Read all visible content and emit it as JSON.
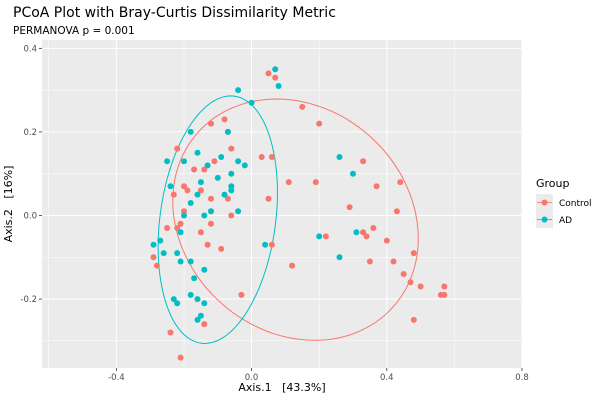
{
  "chart_data": {
    "type": "scatter",
    "title": "PCoA Plot with Bray-Curtis Dissimilarity Metric",
    "subtitle": "PERMANOVA p = 0.001",
    "xlabel": "Axis.1   [43.3%]",
    "ylabel": "Axis.2   [16%]",
    "xlim": [
      -0.62,
      0.8
    ],
    "ylim": [
      -0.365,
      0.42
    ],
    "x_ticks": [
      -0.4,
      0.0,
      0.4,
      0.8
    ],
    "x_tick_labels": [
      "-0.4",
      "0.0",
      "0.4",
      "0.8"
    ],
    "y_ticks": [
      -0.2,
      0.0,
      0.2,
      0.4
    ],
    "y_tick_labels": [
      "-0.2",
      "0.0",
      "0.2",
      "0.4"
    ],
    "grid": true,
    "legend": {
      "title": "Group",
      "position": "right"
    },
    "series": [
      {
        "name": "Control",
        "color": "#F8766D",
        "points": [
          [
            0.05,
            0.34
          ],
          [
            0.07,
            0.33
          ],
          [
            0.2,
            0.22
          ],
          [
            0.15,
            0.26
          ],
          [
            -0.08,
            0.23
          ],
          [
            -0.12,
            0.22
          ],
          [
            -0.07,
            0.2
          ],
          [
            -0.06,
            0.16
          ],
          [
            0.06,
            0.14
          ],
          [
            -0.11,
            0.13
          ],
          [
            0.03,
            0.14
          ],
          [
            -0.22,
            0.16
          ],
          [
            -0.17,
            0.11
          ],
          [
            -0.14,
            0.11
          ],
          [
            -0.2,
            0.07
          ],
          [
            -0.19,
            0.06
          ],
          [
            -0.23,
            0.05
          ],
          [
            -0.15,
            0.06
          ],
          [
            -0.12,
            0.04
          ],
          [
            -0.07,
            0.04
          ],
          [
            -0.12,
            0.01
          ],
          [
            -0.06,
            0.0
          ],
          [
            -0.2,
            0.01
          ],
          [
            -0.21,
            -0.02
          ],
          [
            -0.12,
            -0.02
          ],
          [
            -0.22,
            -0.03
          ],
          [
            -0.25,
            -0.03
          ],
          [
            0.05,
            0.04
          ],
          [
            0.11,
            0.08
          ],
          [
            0.19,
            0.08
          ],
          [
            0.33,
            0.13
          ],
          [
            0.37,
            0.07
          ],
          [
            0.44,
            0.08
          ],
          [
            0.43,
            0.01
          ],
          [
            0.29,
            0.02
          ],
          [
            0.36,
            -0.03
          ],
          [
            0.4,
            -0.06
          ],
          [
            0.48,
            -0.09
          ],
          [
            0.33,
            -0.04
          ],
          [
            0.34,
            -0.05
          ],
          [
            0.22,
            -0.05
          ],
          [
            0.06,
            -0.07
          ],
          [
            0.12,
            -0.12
          ],
          [
            0.35,
            -0.11
          ],
          [
            0.42,
            -0.11
          ],
          [
            0.45,
            -0.14
          ],
          [
            0.5,
            -0.17
          ],
          [
            0.47,
            -0.16
          ],
          [
            0.57,
            -0.17
          ],
          [
            0.56,
            -0.19
          ],
          [
            0.57,
            -0.19
          ],
          [
            0.48,
            -0.25
          ],
          [
            -0.09,
            -0.08
          ],
          [
            -0.13,
            -0.07
          ],
          [
            -0.15,
            -0.04
          ],
          [
            -0.29,
            -0.1
          ],
          [
            -0.28,
            -0.12
          ],
          [
            -0.03,
            -0.19
          ],
          [
            -0.14,
            -0.26
          ],
          [
            -0.24,
            -0.28
          ],
          [
            -0.21,
            -0.34
          ]
        ]
      },
      {
        "name": "AD",
        "color": "#00BFC4",
        "points": [
          [
            -0.04,
            0.3
          ],
          [
            0.0,
            0.27
          ],
          [
            0.07,
            0.35
          ],
          [
            0.08,
            0.31
          ],
          [
            -0.07,
            0.2
          ],
          [
            -0.18,
            0.2
          ],
          [
            -0.25,
            0.13
          ],
          [
            -0.2,
            0.13
          ],
          [
            -0.16,
            0.15
          ],
          [
            -0.13,
            0.12
          ],
          [
            -0.09,
            0.14
          ],
          [
            -0.04,
            0.13
          ],
          [
            -0.02,
            0.12
          ],
          [
            -0.06,
            0.1
          ],
          [
            -0.1,
            0.09
          ],
          [
            -0.15,
            0.08
          ],
          [
            -0.24,
            0.07
          ],
          [
            -0.06,
            0.07
          ],
          [
            -0.08,
            0.05
          ],
          [
            -0.06,
            0.06
          ],
          [
            -0.16,
            0.05
          ],
          [
            -0.18,
            0.03
          ],
          [
            -0.12,
            0.01
          ],
          [
            -0.14,
            0.0
          ],
          [
            -0.2,
            0.0
          ],
          [
            -0.04,
            0.01
          ],
          [
            -0.21,
            -0.04
          ],
          [
            -0.27,
            -0.06
          ],
          [
            -0.29,
            -0.07
          ],
          [
            -0.26,
            -0.09
          ],
          [
            -0.18,
            -0.11
          ],
          [
            -0.14,
            -0.13
          ],
          [
            -0.21,
            -0.11
          ],
          [
            -0.23,
            -0.2
          ],
          [
            -0.22,
            -0.21
          ],
          [
            -0.18,
            -0.19
          ],
          [
            -0.16,
            -0.2
          ],
          [
            -0.17,
            -0.15
          ],
          [
            -0.14,
            -0.21
          ],
          [
            -0.15,
            -0.24
          ],
          [
            -0.16,
            -0.25
          ],
          [
            0.26,
            0.14
          ],
          [
            0.3,
            0.1
          ],
          [
            0.2,
            -0.05
          ],
          [
            0.26,
            -0.1
          ],
          [
            0.31,
            -0.04
          ],
          [
            0.04,
            -0.07
          ],
          [
            -0.22,
            -0.09
          ]
        ]
      }
    ],
    "ellipses": [
      {
        "group": "Control",
        "center": [
          0.13,
          -0.01
        ],
        "semi_major": 0.37,
        "semi_minor": 0.28,
        "angle_deg": -17
      },
      {
        "group": "AD",
        "center": [
          -0.1,
          -0.01
        ],
        "semi_major": 0.3,
        "semi_minor": 0.17,
        "angle_deg": 79
      }
    ]
  }
}
